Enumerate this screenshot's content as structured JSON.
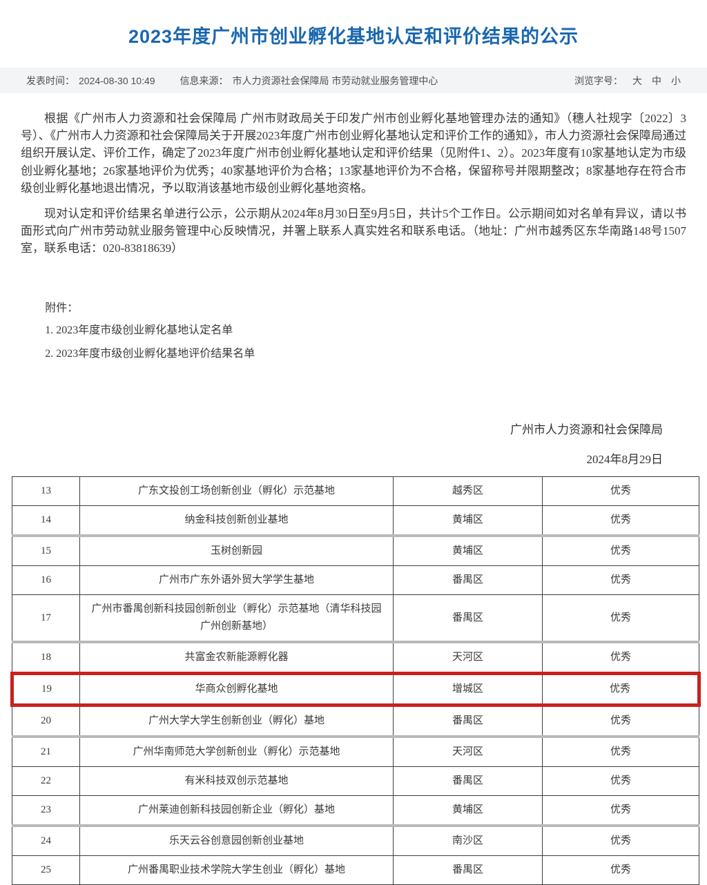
{
  "page": {
    "title": "2023年度广州市创业孵化基地认定和评价结果的公示",
    "meta": {
      "publish_label": "发表时间：",
      "publish_time": "2024-08-30 10:49",
      "source_label": "信息来源：",
      "source": "市人力资源社会保障局 市劳动就业服务管理中心",
      "font_size_label": "浏览字号：",
      "font_sizes": [
        "大",
        "中",
        "小"
      ]
    },
    "paragraphs": [
      "根据《广州市人力资源和社会保障局 广州市财政局关于印发广州市创业孵化基地管理办法的通知》（穗人社规字〔2022〕3号）、《广州市人力资源和社会保障局关于开展2023年度广州市创业孵化基地认定和评价工作的通知》，市人力资源社会保障局通过组织开展认定、评价工作，确定了2023年度广州市创业孵化基地认定和评价结果（见附件1、2）。2023年度有10家基地认定为市级创业孵化基地；26家基地评价为优秀；40家基地评价为合格；13家基地评价为不合格，保留称号并限期整改；8家基地存在符合市级创业孵化基地退出情况，予以取消该基地市级创业孵化基地资格。",
      "现对认定和评价结果名单进行公示，公示期从2024年8月30日至9月5日，共计5个工作日。公示期间如对名单有异议，请以书面形式向广州市劳动就业服务管理中心反映情况，并署上联系人真实姓名和联系电话。（地址：广州市越秀区东华南路148号1507室，联系电话：020-83818639）"
    ],
    "attachments": {
      "label": "附件：",
      "items": [
        "1. 2023年度市级创业孵化基地认定名单",
        "2. 2023年度市级创业孵化基地评价结果名单"
      ]
    },
    "signature": {
      "org": "广州市人力资源和社会保障局",
      "date": "2024年8月29日"
    }
  },
  "table": {
    "rows": [
      {
        "no": "13",
        "name": "广东文投创工场创新创业（孵化）示范基地",
        "district": "越秀区",
        "rating": "优秀"
      },
      {
        "no": "14",
        "name": "纳金科技创新创业基地",
        "district": "黄埔区",
        "rating": "优秀",
        "separator_after": true
      },
      {
        "no": "15",
        "name": "玉树创新园",
        "district": "黄埔区",
        "rating": "优秀"
      },
      {
        "no": "16",
        "name": "广州市广东外语外贸大学学生基地",
        "district": "番禺区",
        "rating": "优秀"
      },
      {
        "no": "17",
        "name": "广州市番禺创新科技园创新创业（孵化）示范基地（清华科技园广州创新基地）",
        "district": "番禺区",
        "rating": "优秀",
        "separator_after": true
      },
      {
        "no": "18",
        "name": "共富金农新能源孵化器",
        "district": "天河区",
        "rating": "优秀"
      },
      {
        "no": "19",
        "name": "华商众创孵化基地",
        "district": "增城区",
        "rating": "优秀",
        "highlighted": true
      },
      {
        "no": "20",
        "name": "广州大学大学生创新创业（孵化）基地",
        "district": "番禺区",
        "rating": "优秀",
        "separator_after": true
      },
      {
        "no": "21",
        "name": "广州华南师范大学创新创业（孵化）示范基地",
        "district": "天河区",
        "rating": "优秀"
      },
      {
        "no": "22",
        "name": "有米科技双创示范基地",
        "district": "番禺区",
        "rating": "优秀"
      },
      {
        "no": "23",
        "name": "广州莱迪创新科技园创新企业（孵化）基地",
        "district": "黄埔区",
        "rating": "优秀",
        "separator_after": true
      },
      {
        "no": "24",
        "name": "乐天云谷创意园创新创业基地",
        "district": "南沙区",
        "rating": "优秀"
      },
      {
        "no": "25",
        "name": "广州番禺职业技术学院大学生创业（孵化）基地",
        "district": "番禺区",
        "rating": "优秀"
      }
    ]
  },
  "colors": {
    "title_blue": "#1a67ae",
    "highlight_red": "#c9211d",
    "meta_bar_bg": "#f3f4f5",
    "table_border": "#3c3c3c",
    "separator_gray": "#b9b9b9"
  }
}
